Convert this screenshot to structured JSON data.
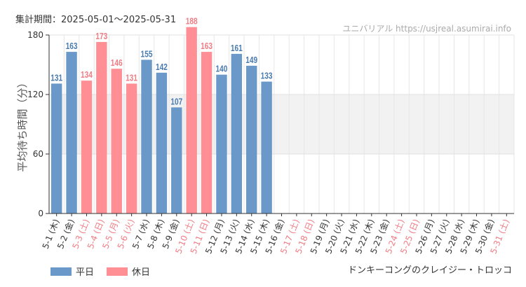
{
  "header": {
    "period_label": "集計期間：2025-05-01～2025-05-31",
    "credit": "ユニバリアル  https://usjreal.asumirai.info"
  },
  "footer": {
    "attraction_name": "ドンキーコングのクレイジー・トロッコ"
  },
  "colors": {
    "weekday": "#6a98c8",
    "holiday": "#ff8f94",
    "weekday_text": "#4a7bb0",
    "holiday_text": "#f07c85",
    "band": "#f2f2f2"
  },
  "chart_data": {
    "type": "bar",
    "title": "",
    "xlabel": "",
    "ylabel": "平均待ち時間（分）",
    "ylim": [
      0,
      180
    ],
    "yticks": [
      0,
      60,
      120,
      180
    ],
    "grid": true,
    "legend_position": "bottom-left",
    "highlight_band": [
      60,
      120
    ],
    "legend": [
      {
        "name": "平日",
        "kind": "weekday"
      },
      {
        "name": "休日",
        "kind": "holiday"
      }
    ],
    "categories": [
      "5-1 (木)",
      "5-2 (金)",
      "5-3 (土)",
      "5-4 (日)",
      "5-5 (月)",
      "5-6 (火)",
      "5-7 (水)",
      "5-8 (木)",
      "5-9 (金)",
      "5-10 (土)",
      "5-11 (日)",
      "5-12 (月)",
      "5-13 (火)",
      "5-14 (水)",
      "5-15 (木)",
      "5-16 (金)",
      "5-17 (土)",
      "5-18 (日)",
      "5-19 (月)",
      "5-20 (火)",
      "5-21 (水)",
      "5-22 (木)",
      "5-23 (金)",
      "5-24 (土)",
      "5-25 (日)",
      "5-26 (月)",
      "5-27 (火)",
      "5-28 (水)",
      "5-29 (木)",
      "5-30 (金)",
      "5-31 (土)"
    ],
    "values": [
      131,
      163,
      134,
      173,
      146,
      131,
      155,
      142,
      107,
      188,
      163,
      140,
      161,
      149,
      133,
      null,
      null,
      null,
      null,
      null,
      null,
      null,
      null,
      null,
      null,
      null,
      null,
      null,
      null,
      null,
      null
    ],
    "holiday": [
      false,
      false,
      true,
      true,
      true,
      true,
      false,
      false,
      false,
      true,
      true,
      false,
      false,
      false,
      false,
      false,
      true,
      true,
      false,
      false,
      false,
      false,
      false,
      true,
      true,
      false,
      false,
      false,
      false,
      false,
      true
    ]
  }
}
